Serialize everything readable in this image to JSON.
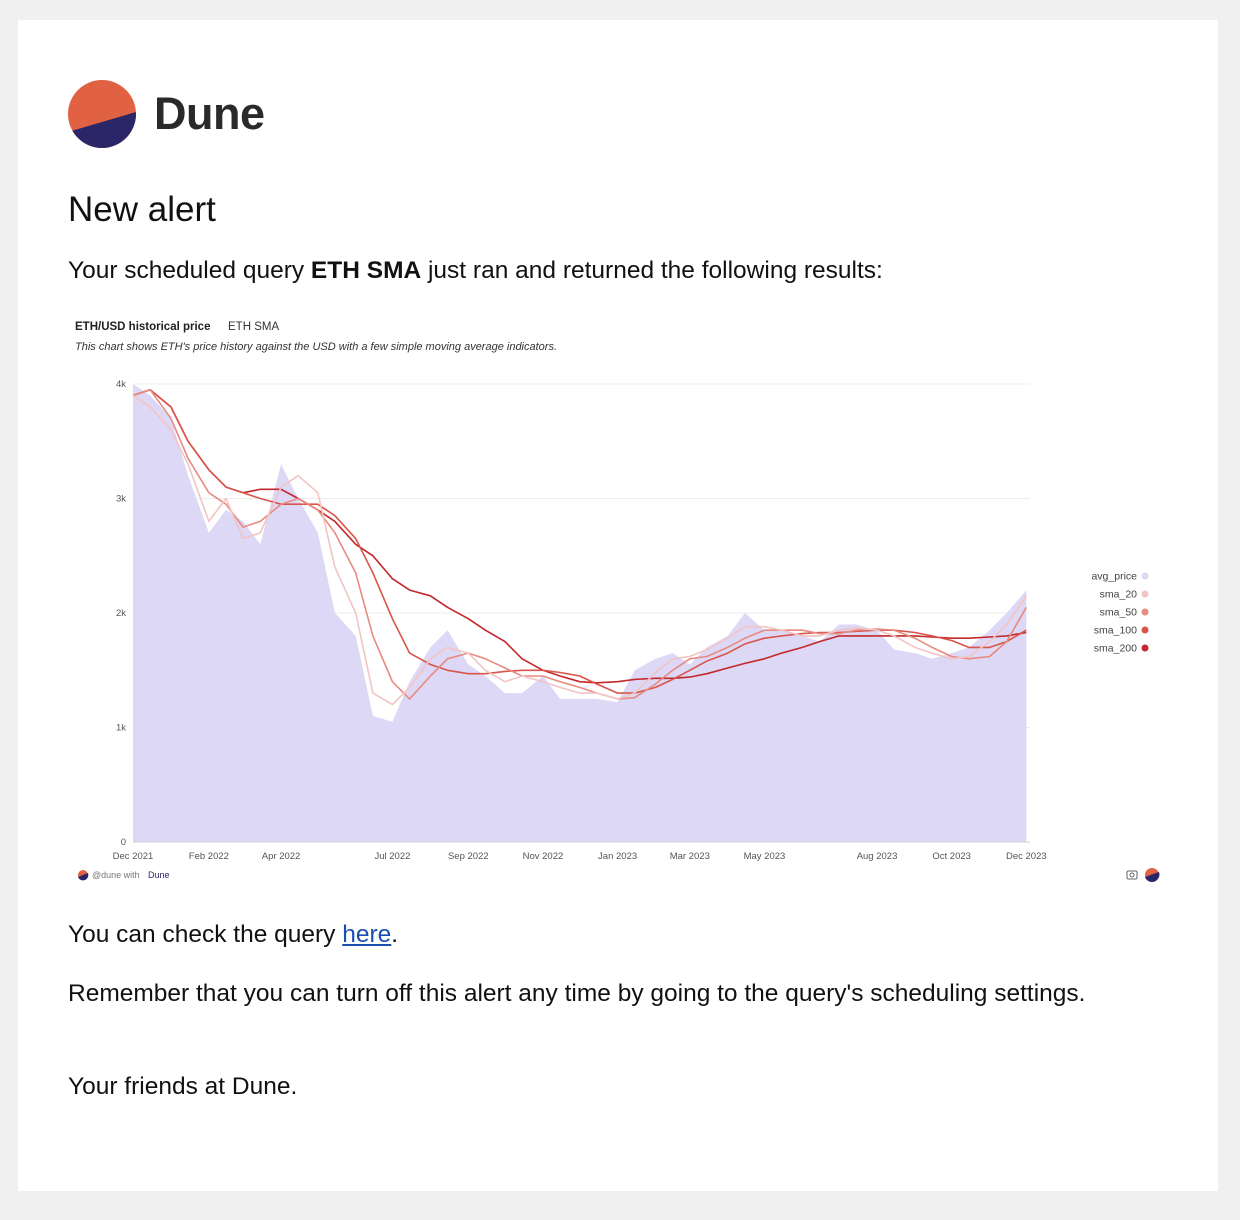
{
  "brand": {
    "name": "Dune",
    "colors": {
      "orange": "#e06243",
      "navy": "#2b2668"
    }
  },
  "email": {
    "heading": "New alert",
    "intro_pre": "Your scheduled query ",
    "query_name": "ETH SMA",
    "intro_post": " just ran and returned the following results:",
    "check_pre": "You can check the query ",
    "check_link": "here",
    "check_post": ".",
    "reminder": "Remember that you can turn off this alert any time by going to the query's scheduling settings.",
    "signoff": "Your friends at Dune."
  },
  "chart_meta": {
    "title": "ETH/USD historical price",
    "query": "ETH SMA",
    "description": "This chart shows ETH's price history against the USD with a few simple moving average indicators.",
    "footer_handle": "@dune with",
    "footer_brand": "Dune",
    "camera_icon": "camera-icon"
  },
  "chart_data": {
    "type": "area",
    "title": "ETH/USD historical price",
    "xlabel": "",
    "ylabel": "",
    "ylim": [
      0,
      4000
    ],
    "y_ticks": [
      0,
      1000,
      2000,
      3000,
      4000
    ],
    "y_tick_labels": [
      "0",
      "1k",
      "2k",
      "3k",
      "4k"
    ],
    "x_ticks": [
      "Dec 2021",
      "Feb 2022",
      "Apr 2022",
      "Jul 2022",
      "Sep 2022",
      "Nov 2022",
      "Jan 2023",
      "Mar 2023",
      "May 2023",
      "Aug 2023",
      "Oct 2023",
      "Dec 2023"
    ],
    "x_range": [
      "2021-12-01",
      "2023-12-04"
    ],
    "grid": true,
    "legend_position": "right",
    "x": [
      "2021-12-01",
      "2021-12-15",
      "2022-01-01",
      "2022-01-15",
      "2022-02-01",
      "2022-02-15",
      "2022-03-01",
      "2022-03-15",
      "2022-04-01",
      "2022-04-15",
      "2022-05-01",
      "2022-05-15",
      "2022-06-01",
      "2022-06-15",
      "2022-07-01",
      "2022-07-15",
      "2022-08-01",
      "2022-08-15",
      "2022-09-01",
      "2022-09-15",
      "2022-10-01",
      "2022-10-15",
      "2022-11-01",
      "2022-11-15",
      "2022-12-01",
      "2022-12-15",
      "2023-01-01",
      "2023-01-15",
      "2023-02-01",
      "2023-02-15",
      "2023-03-01",
      "2023-03-15",
      "2023-04-01",
      "2023-04-15",
      "2023-05-01",
      "2023-05-15",
      "2023-06-01",
      "2023-06-15",
      "2023-07-01",
      "2023-07-15",
      "2023-08-01",
      "2023-08-15",
      "2023-09-01",
      "2023-09-15",
      "2023-10-01",
      "2023-10-15",
      "2023-11-01",
      "2023-11-15",
      "2023-12-01"
    ],
    "series": [
      {
        "name": "avg_price",
        "color": "#dcd8f5",
        "values": [
          4000,
          3900,
          3700,
          3200,
          2700,
          2900,
          2800,
          2600,
          3300,
          3000,
          2700,
          2000,
          1800,
          1100,
          1050,
          1400,
          1700,
          1850,
          1550,
          1450,
          1300,
          1300,
          1450,
          1250,
          1250,
          1250,
          1220,
          1500,
          1600,
          1650,
          1550,
          1700,
          1800,
          2000,
          1850,
          1850,
          1800,
          1750,
          1900,
          1900,
          1850,
          1680,
          1650,
          1600,
          1650,
          1700,
          1850,
          2000,
          2200
        ]
      },
      {
        "name": "sma_20",
        "color": "#f2c4c4",
        "values": [
          3900,
          3800,
          3600,
          3300,
          2800,
          3000,
          2650,
          2700,
          3100,
          3200,
          3050,
          2400,
          2000,
          1300,
          1200,
          1350,
          1600,
          1700,
          1650,
          1500,
          1400,
          1450,
          1400,
          1350,
          1300,
          1300,
          1250,
          1300,
          1480,
          1600,
          1620,
          1680,
          1780,
          1880,
          1880,
          1850,
          1800,
          1800,
          1850,
          1870,
          1850,
          1800,
          1700,
          1650,
          1600,
          1620,
          1750,
          1900,
          2150
        ]
      },
      {
        "name": "sma_50",
        "color": "#e88a80",
        "values": [
          3900,
          3950,
          3700,
          3350,
          3050,
          2950,
          2750,
          2800,
          2950,
          3000,
          2900,
          2700,
          2350,
          1800,
          1400,
          1250,
          1450,
          1600,
          1650,
          1600,
          1520,
          1450,
          1450,
          1400,
          1350,
          1300,
          1250,
          1260,
          1380,
          1500,
          1600,
          1620,
          1700,
          1780,
          1850,
          1850,
          1850,
          1820,
          1820,
          1850,
          1860,
          1850,
          1780,
          1700,
          1620,
          1600,
          1620,
          1750,
          2050
        ]
      },
      {
        "name": "sma_100",
        "color": "#d9554c",
        "values": [
          3900,
          3950,
          3800,
          3500,
          3250,
          3100,
          3050,
          3000,
          2950,
          2950,
          2950,
          2850,
          2650,
          2350,
          1950,
          1650,
          1550,
          1500,
          1470,
          1470,
          1490,
          1500,
          1500,
          1480,
          1450,
          1380,
          1300,
          1300,
          1350,
          1420,
          1500,
          1580,
          1650,
          1730,
          1780,
          1800,
          1820,
          1830,
          1830,
          1840,
          1850,
          1850,
          1830,
          1800,
          1760,
          1700,
          1700,
          1750,
          1850
        ]
      },
      {
        "name": "sma_200",
        "color": "#c4282a",
        "values": [
          3900,
          3950,
          3800,
          3500,
          3250,
          3100,
          3050,
          3080,
          3080,
          3000,
          2900,
          2800,
          2600,
          2500,
          2300,
          2200,
          2150,
          2050,
          1950,
          1850,
          1750,
          1600,
          1500,
          1450,
          1400,
          1390,
          1400,
          1420,
          1430,
          1430,
          1440,
          1470,
          1520,
          1560,
          1600,
          1650,
          1700,
          1750,
          1800,
          1800,
          1800,
          1800,
          1800,
          1790,
          1780,
          1780,
          1790,
          1800,
          1830
        ]
      }
    ]
  }
}
